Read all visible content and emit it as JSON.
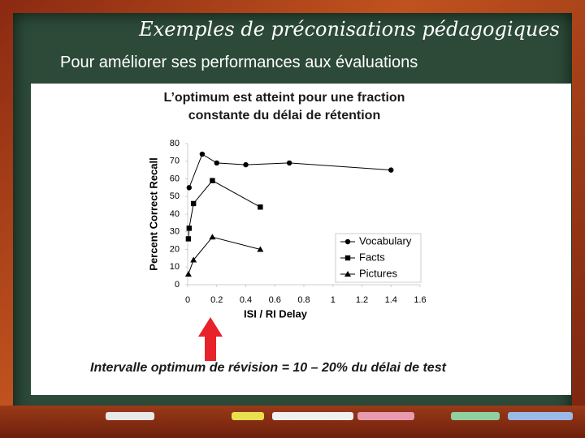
{
  "slide": {
    "title": "Exemples de préconisations pédagogiques",
    "subtitle": "Pour améliorer ses performances aux évaluations"
  },
  "chart_data": {
    "type": "line",
    "title_lines": [
      "L’optimum est atteint pour une fraction",
      "constante du délai de rétention"
    ],
    "x_label": "ISI / RI Delay",
    "y_label": "Percent Correct Recall",
    "xlim": [
      0,
      1.6
    ],
    "xticks": [
      0,
      0.2,
      0.4,
      0.6,
      0.8,
      1,
      1.2,
      1.4,
      1.6
    ],
    "ylim": [
      0,
      80
    ],
    "yticks": [
      0,
      10,
      20,
      30,
      40,
      50,
      60,
      70,
      80
    ],
    "legend": "lower right",
    "series": [
      {
        "name": "Vocabulary",
        "color": "#000000",
        "marker": "circle",
        "x": [
          0.01,
          0.1,
          0.2,
          0.4,
          0.7,
          1.4
        ],
        "values": [
          55,
          74,
          69,
          68,
          69,
          65
        ]
      },
      {
        "name": "Facts",
        "color": "#000000",
        "marker": "square",
        "x": [
          0.005,
          0.01,
          0.04,
          0.17,
          0.5
        ],
        "values": [
          26,
          32,
          46,
          59,
          44
        ]
      },
      {
        "name": "Pictures",
        "color": "#000000",
        "marker": "triangle",
        "x": [
          0.005,
          0.04,
          0.17,
          0.5
        ],
        "values": [
          6,
          14,
          27,
          20
        ]
      }
    ],
    "annotation": "Intervalle optimum de révision  = 10 – 20% du délai de test"
  }
}
